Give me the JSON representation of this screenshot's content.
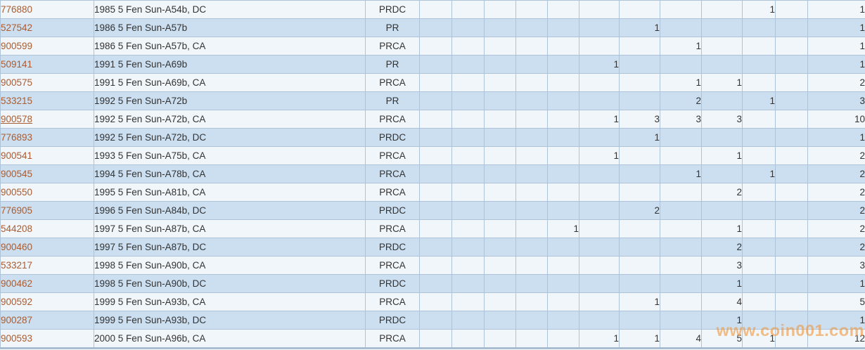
{
  "watermark": {
    "text": "www.coin001.com",
    "color": "#ee9842"
  },
  "colors": {
    "row_light": "#f1f6fa",
    "row_blue": "#cbdff1",
    "grid_border": "#aec3d8",
    "cert_link": "#aa5c30",
    "body_text": "#333333",
    "bottom_bar": "#a9bdd2"
  },
  "table": {
    "grade_column_count": 11,
    "rows": [
      {
        "cert": "776880",
        "description": "1985 5 Fen Sun-A54b, DC",
        "type": "PRDC",
        "underlined": false,
        "grades": [
          "",
          "",
          "",
          "",
          "",
          "",
          "",
          "",
          "",
          "1",
          ""
        ],
        "total": "1"
      },
      {
        "cert": "527542",
        "description": "1986 5 Fen Sun-A57b",
        "type": "PR",
        "underlined": false,
        "grades": [
          "",
          "",
          "",
          "",
          "",
          "",
          "1",
          "",
          "",
          "",
          ""
        ],
        "total": "1"
      },
      {
        "cert": "900599",
        "description": "1986 5 Fen Sun-A57b, CA",
        "type": "PRCA",
        "underlined": false,
        "grades": [
          "",
          "",
          "",
          "",
          "",
          "",
          "",
          "1",
          "",
          "",
          ""
        ],
        "total": "1"
      },
      {
        "cert": "509141",
        "description": "1991 5 Fen Sun-A69b",
        "type": "PR",
        "underlined": false,
        "grades": [
          "",
          "",
          "",
          "",
          "",
          "1",
          "",
          "",
          "",
          "",
          ""
        ],
        "total": "1"
      },
      {
        "cert": "900575",
        "description": "1991 5 Fen Sun-A69b, CA",
        "type": "PRCA",
        "underlined": false,
        "grades": [
          "",
          "",
          "",
          "",
          "",
          "",
          "",
          "1",
          "1",
          "",
          ""
        ],
        "total": "2"
      },
      {
        "cert": "533215",
        "description": "1992 5 Fen Sun-A72b",
        "type": "PR",
        "underlined": false,
        "grades": [
          "",
          "",
          "",
          "",
          "",
          "",
          "",
          "2",
          "",
          "1",
          ""
        ],
        "total": "3"
      },
      {
        "cert": "900578",
        "description": "1992 5 Fen Sun-A72b, CA",
        "type": "PRCA",
        "underlined": true,
        "grades": [
          "",
          "",
          "",
          "",
          "",
          "1",
          "3",
          "3",
          "3",
          "",
          ""
        ],
        "total": "10"
      },
      {
        "cert": "776893",
        "description": "1992 5 Fen Sun-A72b, DC",
        "type": "PRDC",
        "underlined": false,
        "grades": [
          "",
          "",
          "",
          "",
          "",
          "",
          "1",
          "",
          "",
          "",
          ""
        ],
        "total": "1"
      },
      {
        "cert": "900541",
        "description": "1993 5 Fen Sun-A75b, CA",
        "type": "PRCA",
        "underlined": false,
        "grades": [
          "",
          "",
          "",
          "",
          "",
          "1",
          "",
          "",
          "1",
          "",
          ""
        ],
        "total": "2"
      },
      {
        "cert": "900545",
        "description": "1994 5 Fen Sun-A78b, CA",
        "type": "PRCA",
        "underlined": false,
        "grades": [
          "",
          "",
          "",
          "",
          "",
          "",
          "",
          "1",
          "",
          "1",
          ""
        ],
        "total": "2"
      },
      {
        "cert": "900550",
        "description": "1995 5 Fen Sun-A81b, CA",
        "type": "PRCA",
        "underlined": false,
        "grades": [
          "",
          "",
          "",
          "",
          "",
          "",
          "",
          "",
          "2",
          "",
          ""
        ],
        "total": "2"
      },
      {
        "cert": "776905",
        "description": "1996 5 Fen Sun-A84b, DC",
        "type": "PRDC",
        "underlined": false,
        "grades": [
          "",
          "",
          "",
          "",
          "",
          "",
          "2",
          "",
          "",
          "",
          ""
        ],
        "total": "2"
      },
      {
        "cert": "544208",
        "description": "1997 5 Fen Sun-A87b, CA",
        "type": "PRCA",
        "underlined": false,
        "grades": [
          "",
          "",
          "",
          "",
          "1",
          "",
          "",
          "",
          "1",
          "",
          ""
        ],
        "total": "2"
      },
      {
        "cert": "900460",
        "description": "1997 5 Fen Sun-A87b, DC",
        "type": "PRDC",
        "underlined": false,
        "grades": [
          "",
          "",
          "",
          "",
          "",
          "",
          "",
          "",
          "2",
          "",
          ""
        ],
        "total": "2"
      },
      {
        "cert": "533217",
        "description": "1998 5 Fen Sun-A90b, CA",
        "type": "PRCA",
        "underlined": false,
        "grades": [
          "",
          "",
          "",
          "",
          "",
          "",
          "",
          "",
          "3",
          "",
          ""
        ],
        "total": "3"
      },
      {
        "cert": "900462",
        "description": "1998 5 Fen Sun-A90b, DC",
        "type": "PRDC",
        "underlined": false,
        "grades": [
          "",
          "",
          "",
          "",
          "",
          "",
          "",
          "",
          "1",
          "",
          ""
        ],
        "total": "1"
      },
      {
        "cert": "900592",
        "description": "1999 5 Fen Sun-A93b, CA",
        "type": "PRCA",
        "underlined": false,
        "grades": [
          "",
          "",
          "",
          "",
          "",
          "",
          "1",
          "",
          "4",
          "",
          ""
        ],
        "total": "5"
      },
      {
        "cert": "900287",
        "description": "1999 5 Fen Sun-A93b, DC",
        "type": "PRDC",
        "underlined": false,
        "grades": [
          "",
          "",
          "",
          "",
          "",
          "",
          "",
          "",
          "1",
          "",
          ""
        ],
        "total": "1"
      },
      {
        "cert": "900593",
        "description": "2000 5 Fen Sun-A96b, CA",
        "type": "PRCA",
        "underlined": false,
        "grades": [
          "",
          "",
          "",
          "",
          "",
          "1",
          "1",
          "4",
          "5",
          "1",
          ""
        ],
        "total": "12"
      }
    ]
  }
}
